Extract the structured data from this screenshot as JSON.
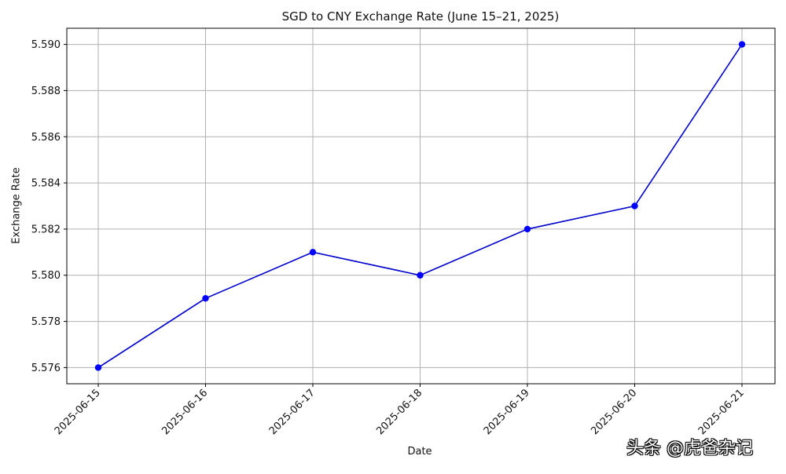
{
  "chart_data": {
    "type": "line",
    "title": "SGD to CNY Exchange Rate (June 15–21, 2025)",
    "xlabel": "Date",
    "ylabel": "Exchange Rate",
    "x": [
      "2025-06-15",
      "2025-06-16",
      "2025-06-17",
      "2025-06-18",
      "2025-06-19",
      "2025-06-20",
      "2025-06-21"
    ],
    "series": [
      {
        "name": "",
        "values": [
          5.576,
          5.579,
          5.581,
          5.58,
          5.582,
          5.583,
          5.59
        ]
      }
    ],
    "y_ticks": [
      "5.576",
      "5.578",
      "5.580",
      "5.582",
      "5.584",
      "5.586",
      "5.588",
      "5.590"
    ],
    "ylim": [
      5.5753,
      5.5907
    ],
    "grid": true,
    "line_color": "#0000cc",
    "marker_color": "#0000ff"
  },
  "watermark": "头条 @虎爸杂记"
}
